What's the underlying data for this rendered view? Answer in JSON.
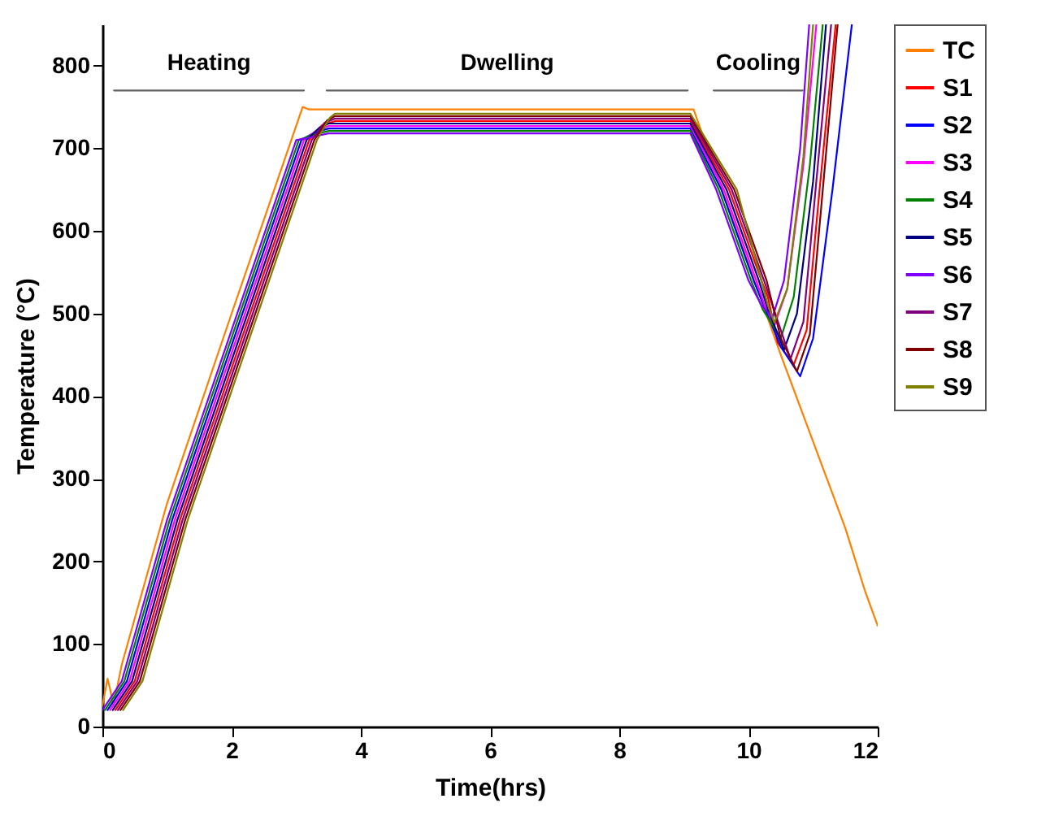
{
  "chart_data": {
    "type": "line",
    "xlabel": "Time(hrs)",
    "ylabel": "Temperature (°C)",
    "xlim": [
      0,
      12
    ],
    "ylim": [
      0,
      850
    ],
    "xticks": [
      0,
      2,
      4,
      6,
      8,
      10,
      12
    ],
    "yticks": [
      0,
      100,
      200,
      300,
      400,
      500,
      600,
      700,
      800
    ],
    "grid": false,
    "legend": "right",
    "line_style": "solid",
    "marker": "none",
    "annotations": [
      "Heating",
      "Dwelling",
      "Cooling"
    ],
    "series": [
      {
        "name": "TC",
        "color": "#ff8000",
        "x": [
          0,
          0.08,
          0.12,
          0.17,
          0.3,
          1,
          2,
          3.1,
          3.2,
          9.1,
          9.15,
          10,
          10.5,
          11,
          11.5,
          11.8,
          12
        ],
        "values": [
          25,
          58,
          45,
          25,
          75,
          270,
          500,
          750,
          747,
          747,
          747,
          560,
          450,
          345,
          240,
          165,
          122
        ]
      },
      {
        "name": "S1",
        "color": "#ff0000",
        "x": [
          0.2,
          0.5,
          1.2,
          2.2,
          3.2,
          3.4,
          3.6,
          5,
          7,
          9.1,
          9.7,
          10.2,
          10.3,
          10.45,
          10.7,
          10.9,
          11.1,
          11.35
        ],
        "values": [
          20,
          55,
          250,
          480,
          710,
          728,
          733,
          733,
          733,
          733,
          650,
          540,
          520,
          465,
          438,
          480,
          650,
          850
        ]
      },
      {
        "name": "S2",
        "color": "#0000ff",
        "x": [
          0.08,
          0.38,
          1.08,
          2.08,
          3.08,
          3.28,
          3.5,
          5,
          7,
          9.1,
          9.58,
          10.08,
          10.26,
          10.5,
          10.8,
          11,
          11.3,
          11.6
        ],
        "values": [
          20,
          55,
          250,
          480,
          710,
          719,
          724,
          724,
          724,
          724,
          650,
          540,
          505,
          460,
          424,
          470,
          650,
          850
        ]
      },
      {
        "name": "S3",
        "color": "#ff00ff",
        "x": [
          0.12,
          0.42,
          1.12,
          2.12,
          3.12,
          3.32,
          3.5,
          5,
          7,
          9.1,
          9.62,
          10.12,
          10.25,
          10.4,
          10.6,
          10.85,
          11.05
        ],
        "values": [
          20,
          55,
          250,
          480,
          710,
          722,
          727,
          727,
          727,
          727,
          650,
          540,
          510,
          485,
          530,
          680,
          850
        ]
      },
      {
        "name": "S4",
        "color": "#008000",
        "x": [
          0.04,
          0.34,
          1.04,
          2.04,
          3.04,
          3.24,
          3.5,
          5,
          7,
          9.1,
          9.54,
          10.04,
          10.22,
          10.5,
          10.7,
          10.95,
          11.15
        ],
        "values": [
          20,
          55,
          250,
          480,
          710,
          716,
          721,
          721,
          721,
          721,
          650,
          540,
          505,
          470,
          520,
          680,
          850
        ]
      },
      {
        "name": "S5",
        "color": "#000080",
        "x": [
          0.16,
          0.46,
          1.16,
          2.16,
          3.16,
          3.36,
          3.5,
          5,
          7,
          9.1,
          9.66,
          10.16,
          10.3,
          10.55,
          10.75,
          11,
          11.2
        ],
        "values": [
          20,
          55,
          250,
          480,
          710,
          725,
          730,
          730,
          730,
          730,
          650,
          540,
          505,
          456,
          500,
          660,
          850
        ]
      },
      {
        "name": "S6",
        "color": "#8000ff",
        "x": [
          0,
          0.3,
          1,
          2,
          3,
          3.2,
          3.5,
          5,
          7,
          9.1,
          9.5,
          10,
          10.2,
          10.37,
          10.55,
          10.8,
          10.94
        ],
        "values": [
          20,
          55,
          250,
          480,
          710,
          713,
          718,
          718,
          718,
          718,
          650,
          540,
          510,
          495,
          540,
          700,
          850
        ]
      },
      {
        "name": "S7",
        "color": "#800080",
        "x": [
          0.24,
          0.54,
          1.24,
          2.24,
          3.24,
          3.44,
          3.6,
          5,
          7,
          9.1,
          9.74,
          10.24,
          10.35,
          10.65,
          10.85,
          11.05,
          11.28
        ],
        "values": [
          20,
          55,
          250,
          480,
          710,
          731,
          736,
          736,
          736,
          736,
          650,
          540,
          515,
          445,
          490,
          660,
          850
        ]
      },
      {
        "name": "S8",
        "color": "#800000",
        "x": [
          0.28,
          0.58,
          1.28,
          2.28,
          3.28,
          3.48,
          3.6,
          5,
          7,
          9.1,
          9.78,
          10.28,
          10.5,
          10.75,
          10.95,
          11.15,
          11.38
        ],
        "values": [
          20,
          55,
          250,
          480,
          710,
          734,
          739,
          739,
          739,
          739,
          650,
          540,
          470,
          430,
          475,
          650,
          850
        ]
      },
      {
        "name": "S9",
        "color": "#808000",
        "x": [
          0.32,
          0.62,
          1.32,
          2.32,
          3.32,
          3.52,
          3.6,
          5,
          7,
          9.1,
          9.82,
          10.2,
          10.3,
          10.4,
          10.6,
          10.85,
          11.0
        ],
        "values": [
          20,
          55,
          250,
          480,
          710,
          737,
          742,
          742,
          742,
          742,
          650,
          540,
          510,
          489,
          530,
          690,
          850
        ]
      },
      {
        "type": "line",
        "color": "#606060",
        "x": [
          0.18,
          3.12,
          3.3,
          3.47,
          9.06,
          9.2,
          9.46,
          10.84
        ],
        "values": [
          770,
          770,
          null,
          770,
          770,
          null,
          770,
          770
        ]
      }
    ]
  }
}
